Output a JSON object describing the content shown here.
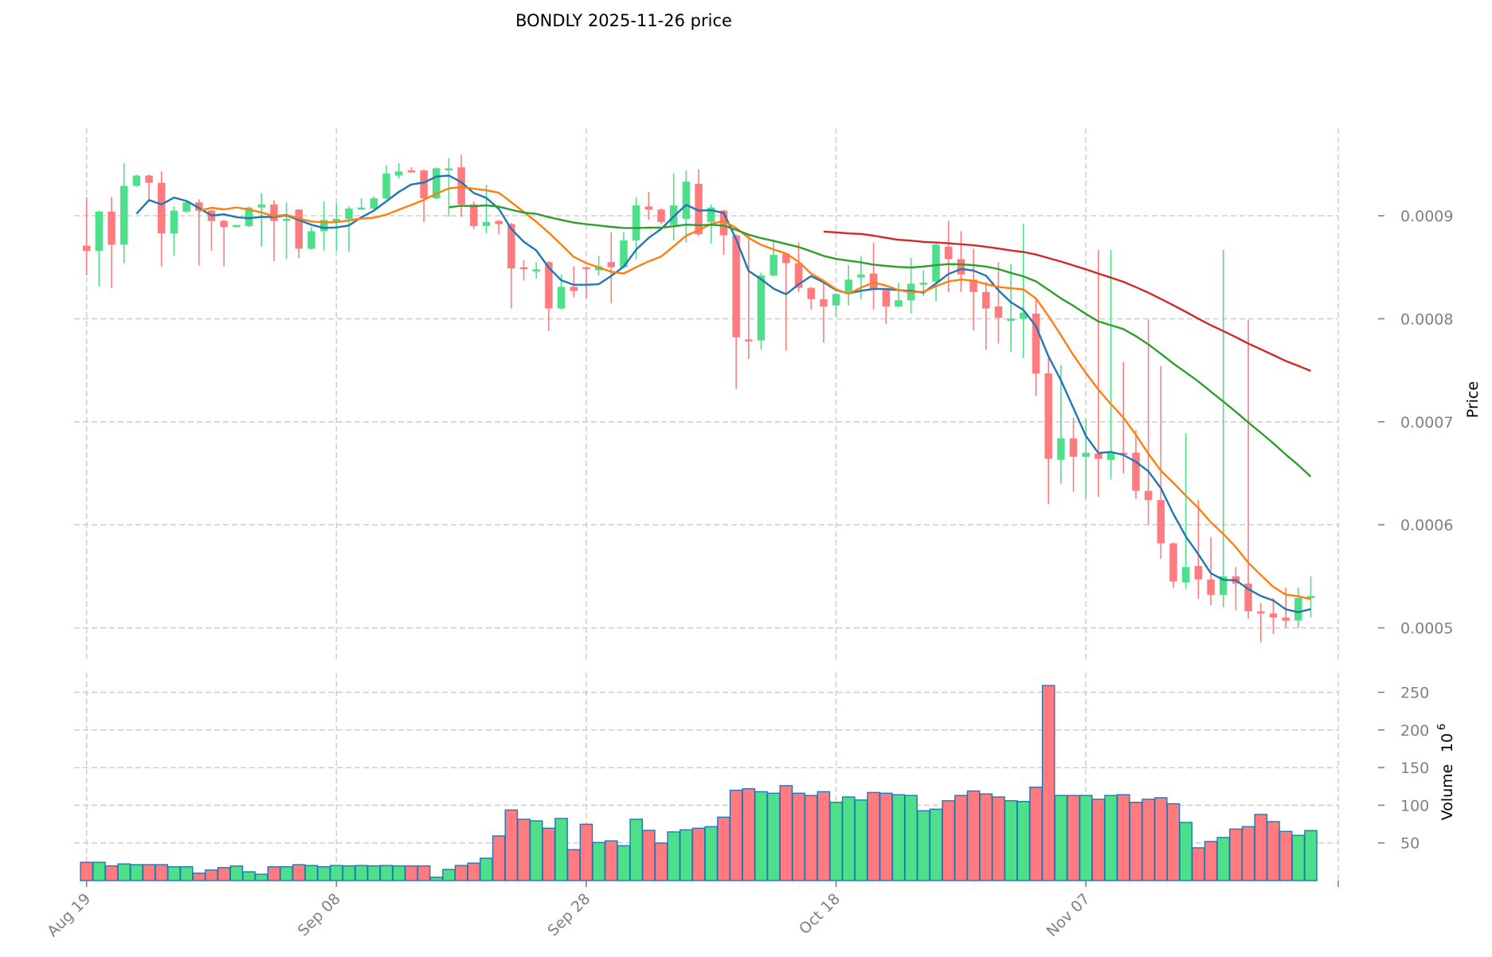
{
  "chart_data": {
    "type": "candlestick",
    "title": "BONDLY  2025-11-26  price",
    "symbol": "BONDLY",
    "date": "2025-11-26",
    "ylabel": "Price",
    "volume_label": "Volume",
    "volume_exponent": "10",
    "volume_exponent_power": "6",
    "price_ylim": [
      0.000468,
      0.000985
    ],
    "volume_ylim": [
      0,
      276
    ],
    "xlim": [
      -1.0,
      100.2
    ],
    "grid": true,
    "price_ticks": [
      "0.0005",
      "0.0006",
      "0.0007",
      "0.0008",
      "0.0009"
    ],
    "price_tick_values": [
      0.0005,
      0.0006,
      0.0007,
      0.0008,
      0.0009
    ],
    "volume_ticks": [
      "50",
      "100",
      "150",
      "200",
      "250"
    ],
    "volume_tick_values": [
      50,
      100,
      150,
      200,
      250
    ],
    "x_ticks": [
      {
        "index": 0,
        "label": "Aug 19"
      },
      {
        "index": 20,
        "label": "Sep 08"
      },
      {
        "index": 40,
        "label": "Sep 28"
      },
      {
        "index": 60,
        "label": "Oct 18"
      },
      {
        "index": 80,
        "label": "Nov 07"
      }
    ],
    "moving_averages": [
      {
        "period": 5,
        "color": "#1f77b4"
      },
      {
        "period": 10,
        "color": "#ff7f0e"
      },
      {
        "period": 30,
        "color": "#2ca02c"
      },
      {
        "period": 60,
        "color": "#d62728"
      }
    ],
    "colors": {
      "up": "#4ddf89",
      "down": "#ff7b7f",
      "volume_edge": "#1f77b4"
    },
    "ohlc_fields": [
      "open",
      "high",
      "low",
      "close"
    ],
    "ohlc": [
      [
        0.000871,
        0.000918,
        0.000842,
        0.000866
      ],
      [
        0.000866,
        0.000905,
        0.000831,
        0.000904
      ],
      [
        0.000904,
        0.000918,
        0.00083,
        0.000872
      ],
      [
        0.000872,
        0.000951,
        0.000854,
        0.000929
      ],
      [
        0.000929,
        0.00094,
        0.000928,
        0.000939
      ],
      [
        0.000939,
        0.00094,
        0.000914,
        0.000932
      ],
      [
        0.000932,
        0.000943,
        0.000851,
        0.000883
      ],
      [
        0.000883,
        0.000909,
        0.000861,
        0.000905
      ],
      [
        0.000904,
        0.000914,
        0.000903,
        0.000913
      ],
      [
        0.000913,
        0.000916,
        0.000852,
        0.000905
      ],
      [
        0.000905,
        0.000906,
        0.000866,
        0.000895
      ],
      [
        0.000895,
        0.000896,
        0.000851,
        0.000889
      ],
      [
        0.00089,
        0.000891,
        0.000889,
        0.000891
      ],
      [
        0.00089,
        0.000909,
        0.000889,
        0.000908
      ],
      [
        0.000908,
        0.000922,
        0.00087,
        0.000911
      ],
      [
        0.000911,
        0.000915,
        0.000856,
        0.000895
      ],
      [
        0.000896,
        0.000913,
        0.000858,
        0.000897
      ],
      [
        0.000906,
        0.000906,
        0.000859,
        0.000868
      ],
      [
        0.000868,
        0.000889,
        0.000867,
        0.000885
      ],
      [
        0.000885,
        0.000914,
        0.000866,
        0.000896
      ],
      [
        0.000894,
        0.000912,
        0.000866,
        0.000897
      ],
      [
        0.000897,
        0.000909,
        0.000865,
        0.000907
      ],
      [
        0.000907,
        0.000917,
        0.000906,
        0.000908
      ],
      [
        0.000907,
        0.000919,
        0.000906,
        0.000917
      ],
      [
        0.000917,
        0.000949,
        0.000916,
        0.000941
      ],
      [
        0.000939,
        0.000951,
        0.000936,
        0.000943
      ],
      [
        0.000944,
        0.000947,
        0.000942,
        0.000943
      ],
      [
        0.000944,
        0.000945,
        0.000894,
        0.000917
      ],
      [
        0.000917,
        0.000947,
        0.000916,
        0.000946
      ],
      [
        0.000946,
        0.000956,
        0.000899,
        0.000946
      ],
      [
        0.000947,
        0.000959,
        0.000899,
        0.000911
      ],
      [
        0.000911,
        0.000914,
        0.000887,
        0.00089
      ],
      [
        0.00089,
        0.00093,
        0.000883,
        0.000894
      ],
      [
        0.000895,
        0.000896,
        0.000882,
        0.000892
      ],
      [
        0.000892,
        0.000893,
        0.00081,
        0.000849
      ],
      [
        0.00085,
        0.000857,
        0.000837,
        0.000849
      ],
      [
        0.000846,
        0.000855,
        0.000839,
        0.000848
      ],
      [
        0.000855,
        0.000856,
        0.000788,
        0.00081
      ],
      [
        0.00081,
        0.000843,
        0.000809,
        0.000831
      ],
      [
        0.000831,
        0.000851,
        0.000821,
        0.000827
      ],
      [
        0.00085,
        0.000851,
        0.00082,
        0.000849
      ],
      [
        0.000847,
        0.000861,
        0.000842,
        0.000851
      ],
      [
        0.000855,
        0.000884,
        0.000815,
        0.00085
      ],
      [
        0.00085,
        0.000884,
        0.000849,
        0.000876
      ],
      [
        0.000876,
        0.000918,
        0.000858,
        0.00091
      ],
      [
        0.000909,
        0.000923,
        0.000896,
        0.000906
      ],
      [
        0.000906,
        0.000907,
        0.000892,
        0.000894
      ],
      [
        0.000891,
        0.000941,
        0.000876,
        0.00091
      ],
      [
        0.000897,
        0.000944,
        0.000874,
        0.000933
      ],
      [
        0.000931,
        0.000945,
        0.00088,
        0.000882
      ],
      [
        0.000894,
        0.000911,
        0.000873,
        0.000908
      ],
      [
        0.000905,
        0.000906,
        0.000862,
        0.000881
      ],
      [
        0.000881,
        0.000882,
        0.000732,
        0.000782
      ],
      [
        0.00078,
        0.000881,
        0.000761,
        0.000779
      ],
      [
        0.000779,
        0.000845,
        0.00077,
        0.000842
      ],
      [
        0.000842,
        0.000877,
        0.000841,
        0.000862
      ],
      [
        0.000863,
        0.000864,
        0.000769,
        0.000854
      ],
      [
        0.000854,
        0.000874,
        0.000826,
        0.00083
      ],
      [
        0.00083,
        0.000831,
        0.000809,
        0.000819
      ],
      [
        0.000819,
        0.000835,
        0.000777,
        0.000812
      ],
      [
        0.000813,
        0.000825,
        0.000802,
        0.000824
      ],
      [
        0.000826,
        0.000852,
        0.000813,
        0.000838
      ],
      [
        0.00084,
        0.000861,
        0.000819,
        0.000843
      ],
      [
        0.000844,
        0.000874,
        0.000809,
        0.000828
      ],
      [
        0.000828,
        0.000829,
        0.000795,
        0.000812
      ],
      [
        0.000812,
        0.000835,
        0.000811,
        0.000818
      ],
      [
        0.000818,
        0.000859,
        0.000805,
        0.000834
      ],
      [
        0.000834,
        0.000847,
        0.000822,
        0.000835
      ],
      [
        0.000836,
        0.000874,
        0.000817,
        0.000872
      ],
      [
        0.00087,
        0.000895,
        0.000826,
        0.000858
      ],
      [
        0.000858,
        0.000885,
        0.000826,
        0.000843
      ],
      [
        0.000838,
        0.000868,
        0.000789,
        0.000826
      ],
      [
        0.000826,
        0.000836,
        0.00077,
        0.00081
      ],
      [
        0.000812,
        0.000855,
        0.000776,
        0.000801
      ],
      [
        0.0008,
        0.000853,
        0.000768,
        0.0008
      ],
      [
        0.0008,
        0.000892,
        0.000762,
        0.000806
      ],
      [
        0.000805,
        0.00082,
        0.000725,
        0.000747
      ],
      [
        0.000747,
        0.000762,
        0.00062,
        0.000664
      ],
      [
        0.000663,
        0.000755,
        0.00064,
        0.000684
      ],
      [
        0.000684,
        0.000704,
        0.000632,
        0.000666
      ],
      [
        0.000666,
        0.000703,
        0.000626,
        0.00067
      ],
      [
        0.000669,
        0.000867,
        0.000627,
        0.000664
      ],
      [
        0.000663,
        0.000867,
        0.000644,
        0.00067
      ],
      [
        0.00067,
        0.000758,
        0.00065,
        0.000669
      ],
      [
        0.00067,
        0.000692,
        0.000625,
        0.000633
      ],
      [
        0.000633,
        0.000799,
        0.0006,
        0.000624
      ],
      [
        0.000624,
        0.000754,
        0.000567,
        0.000582
      ],
      [
        0.000582,
        0.000583,
        0.000539,
        0.000545
      ],
      [
        0.000544,
        0.000689,
        0.000538,
        0.000559
      ],
      [
        0.00056,
        0.000624,
        0.000528,
        0.000547
      ],
      [
        0.000547,
        0.000588,
        0.000522,
        0.000532
      ],
      [
        0.000532,
        0.000867,
        0.00052,
        0.00055
      ],
      [
        0.00055,
        0.000559,
        0.000517,
        0.000543
      ],
      [
        0.000543,
        0.000799,
        0.000509,
        0.000516
      ],
      [
        0.000516,
        0.000524,
        0.000486,
        0.000514
      ],
      [
        0.000514,
        0.000529,
        0.000494,
        0.00051
      ],
      [
        0.00051,
        0.000539,
        0.0005,
        0.000507
      ],
      [
        0.000507,
        0.000539,
        0.0005,
        0.000529
      ],
      [
        0.000529,
        0.00055,
        0.00051,
        0.000531
      ]
    ],
    "volume_millions": [
      24.2,
      24.2,
      19.5,
      22.1,
      21.1,
      21.1,
      21.1,
      18.3,
      18.3,
      9.8,
      14.0,
      17.2,
      19.3,
      11.6,
      8.4,
      18.3,
      18.3,
      21.1,
      20.0,
      18.3,
      20.0,
      19.5,
      20.0,
      19.5,
      20.0,
      19.5,
      19.5,
      19.5,
      4.4,
      14.7,
      20.0,
      23.2,
      29.7,
      59.3,
      93.7,
      81.4,
      79.3,
      69.5,
      82.5,
      41.1,
      74.8,
      50.5,
      52.7,
      46.3,
      81.4,
      66.7,
      49.8,
      64.6,
      67.4,
      69.5,
      71.6,
      84.2,
      120,
      122,
      118,
      116,
      126,
      116,
      113,
      118,
      104,
      111,
      107,
      117,
      116,
      114,
      113,
      92.7,
      94.8,
      106,
      113,
      119,
      115,
      111,
      106,
      105,
      124,
      259,
      113,
      113,
      113,
      108,
      113,
      114,
      104,
      108,
      110,
      102,
      77.2,
      43.5,
      51.9,
      57.2,
      68.4,
      71.6,
      87.8,
      78.3,
      65.3,
      60.0,
      66.3
    ]
  }
}
